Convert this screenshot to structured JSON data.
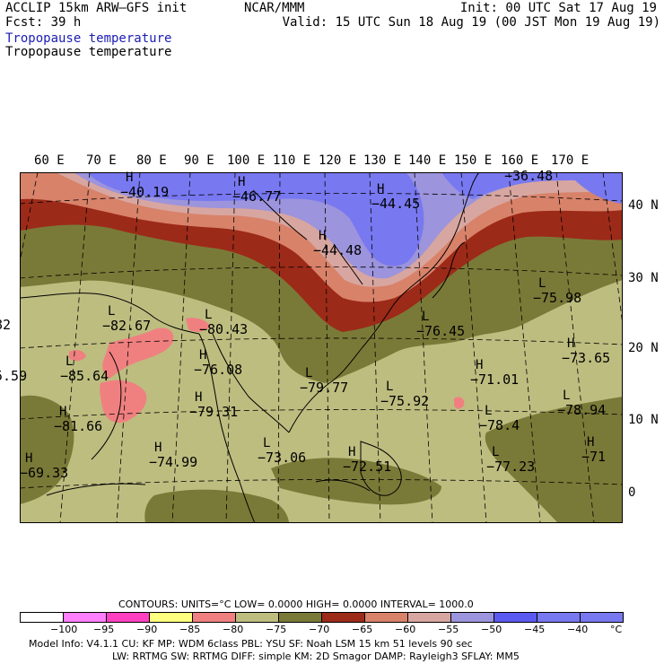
{
  "header": {
    "model": "ACCLIP 15km ARW–GFS init",
    "fcst": "Fcst:   39 h",
    "org": "NCAR/MMM",
    "init": "Init: 00 UTC Sat 17 Aug 19",
    "valid": "Valid: 15 UTC Sun 18 Aug 19 (00 JST Mon 19 Aug 19)"
  },
  "titles": [
    "Tropopause temperature",
    "Tropopause temperature"
  ],
  "colors": {
    "title_blue": "#1c1cb4",
    "fill_lt_minus95": "#ff80ff",
    "fill_minus80_to_minus85": "#f08080",
    "fill_minus75_to_minus80": "#bdbd80",
    "fill_minus70_to_minus75": "#7a7a38",
    "fill_minus65_to_minus70": "#9c2a18",
    "fill_minus60_to_minus65": "#d8826a",
    "fill_minus55_to_minus60": "#d8a6a0",
    "fill_minus50_to_minus55": "#9c94dc",
    "fill_gt_minus50": "#7878f0"
  },
  "longitude_labels": [
    "60 E",
    "70 E",
    "80 E",
    "90 E",
    "100 E",
    "110 E",
    "120 E",
    "130 E",
    "140 E",
    "150 E",
    "160 E",
    "170 E"
  ],
  "latitude_labels": [
    "40 N",
    "30 N",
    "20 N",
    "10 N",
    "0"
  ],
  "extrema": [
    {
      "type": "H",
      "value": "−40.19"
    },
    {
      "type": "H",
      "value": "−46.77"
    },
    {
      "type": "H",
      "value": "−44.45"
    },
    {
      "type": "H",
      "value": "−44.48"
    },
    {
      "type": "",
      "value": "−36.48"
    },
    {
      "type": "L",
      "value": "−75.98"
    },
    {
      "type": "L",
      "value": "−82.67"
    },
    {
      "type": "L",
      "value": "−80.43"
    },
    {
      "type": "L",
      "value": "−76.45"
    },
    {
      "type": "H",
      "value": "−73.65"
    },
    {
      "type": "L",
      "value": "−85.64"
    },
    {
      "type": "H",
      "value": "−76.08"
    },
    {
      "type": "H",
      "value": "−71.01"
    },
    {
      "type": "L",
      "value": "−79.77"
    },
    {
      "type": "L",
      "value": "−75.92"
    },
    {
      "type": "L",
      "value": "−78.94"
    },
    {
      "type": "H",
      "value": "−79.31"
    },
    {
      "type": "L",
      "value": "−78.4"
    },
    {
      "type": "H",
      "value": "−81.66"
    },
    {
      "type": "H",
      "value": "−74.99"
    },
    {
      "type": "L",
      "value": "−73.06"
    },
    {
      "type": "H",
      "value": "−72.51"
    },
    {
      "type": "L",
      "value": "−77.23"
    },
    {
      "type": "H",
      "value": "−71"
    },
    {
      "type": "H",
      "value": "−69.33"
    },
    {
      "type": "",
      "value": "82"
    },
    {
      "type": "",
      "value": "5.59"
    }
  ],
  "legend": {
    "contours_line": "CONTOURS:  UNITS=°C  LOW=  0.0000        HIGH=  0.0000       INTERVAL=   1000.0",
    "boxes": [
      "#ffffff",
      "#ff80ff",
      "#ff40c0",
      "#ffff80",
      "#f08080",
      "#bdbd80",
      "#7a7a38",
      "#9c2a18",
      "#d8826a",
      "#d8a6a0",
      "#9c94dc",
      "#5a5af0",
      "#7878f0",
      "#7878f0"
    ],
    "labels": [
      "−100",
      "−95",
      "−90",
      "−85",
      "−80",
      "−75",
      "−70",
      "−65",
      "−60",
      "−55",
      "−50",
      "−45",
      "−40",
      "°C"
    ]
  },
  "footer": {
    "line1": "Model Info: V4.1.1     CU: KF        MP: WDM 6class  PBL: YSU       SF: Noah LSM      15 km    51 levels    90 sec",
    "line2": "LW: RRTMG    SW: RRTMG   DIFF: simple KM: 2D Smagor DAMP: Rayleigh3  SFLAY: MM5"
  }
}
